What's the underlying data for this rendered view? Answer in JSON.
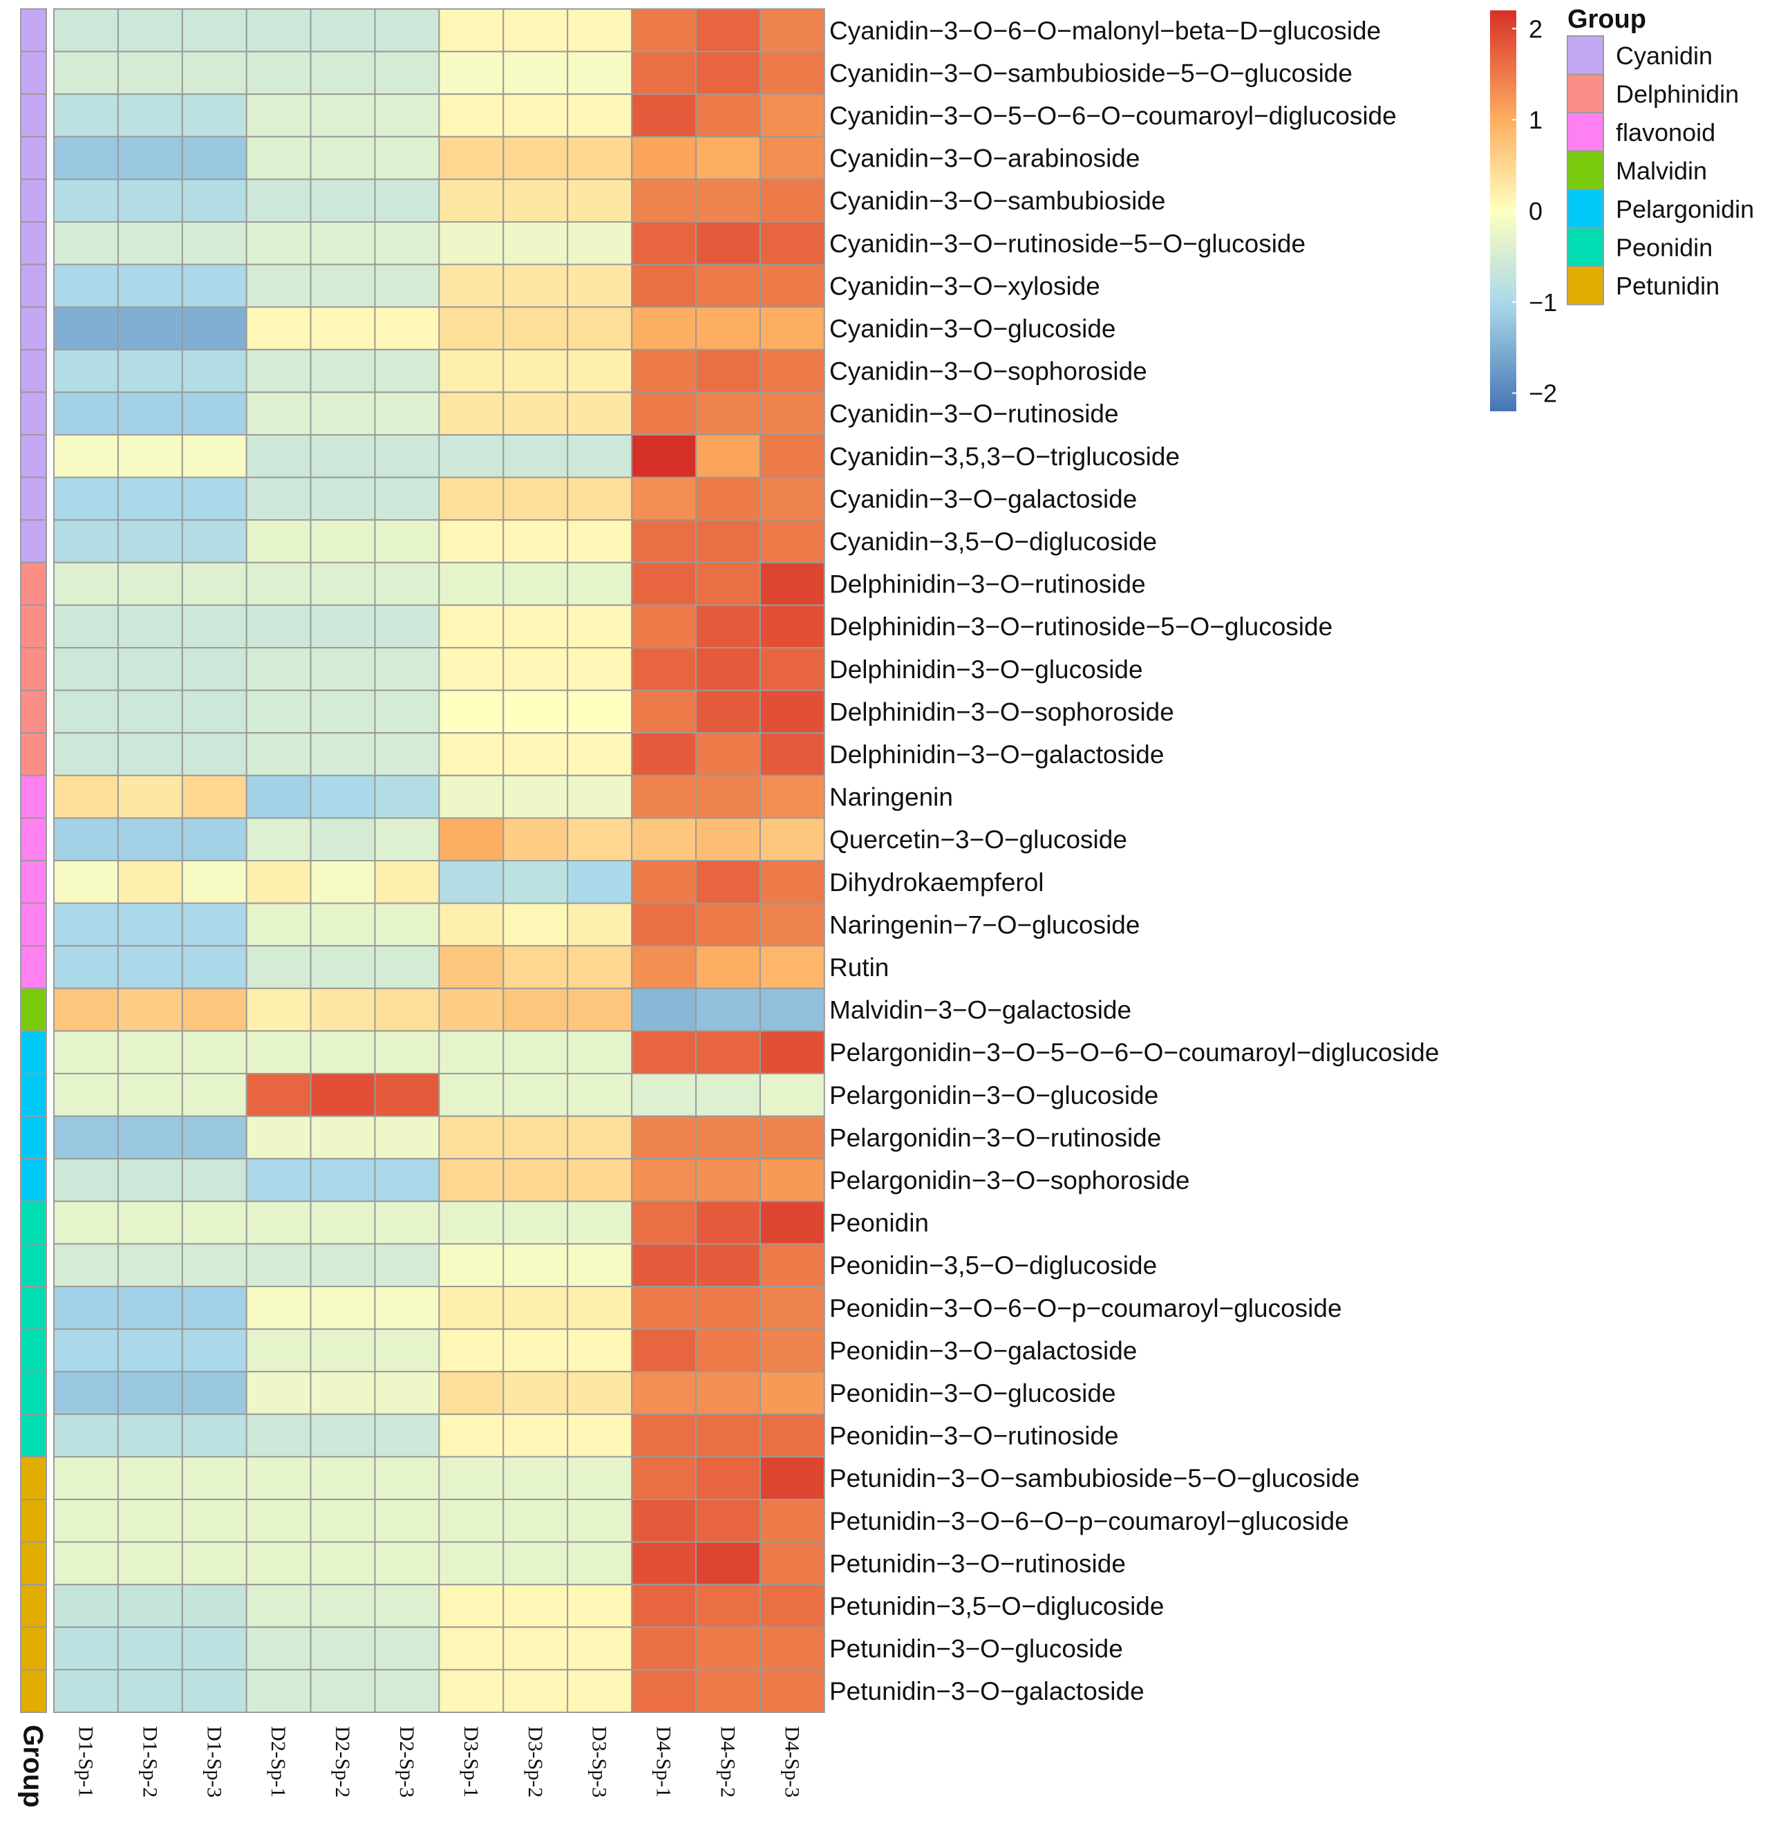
{
  "chart_data": {
    "type": "heatmap",
    "title": "",
    "color_scale": {
      "min": -2.2,
      "max": 2.2,
      "ticks": [
        2,
        1,
        0,
        -1,
        -2
      ],
      "stops": [
        {
          "value": -2.2,
          "color": "#4575b4"
        },
        {
          "value": -1,
          "color": "#abd9e9"
        },
        {
          "value": 0,
          "color": "#ffffbf"
        },
        {
          "value": 1,
          "color": "#fdae61"
        },
        {
          "value": 2.2,
          "color": "#d73027"
        }
      ]
    },
    "columns": [
      "D1-Sp-1",
      "D1-Sp-2",
      "D1-Sp-3",
      "D2-Sp-1",
      "D2-Sp-2",
      "D2-Sp-3",
      "D3-Sp-1",
      "D3-Sp-2",
      "D3-Sp-3",
      "D4-Sp-1",
      "D4-Sp-2",
      "D4-Sp-3"
    ],
    "annotation_label": "Group",
    "groups": [
      {
        "name": "Cyanidin",
        "color": "#C4A8F5"
      },
      {
        "name": "Delphinidin",
        "color": "#FB8E86"
      },
      {
        "name": "flavonoid",
        "color": "#FF80F0"
      },
      {
        "name": "Malvidin",
        "color": "#7ACB0E"
      },
      {
        "name": "Pelargonidin",
        "color": "#00C8F8"
      },
      {
        "name": "Peonidin",
        "color": "#00DDB2"
      },
      {
        "name": "Petunidin",
        "color": "#E1AD00"
      }
    ],
    "rows": [
      {
        "name": "Cyanidin−3−O−6−O−malonyl−beta−D−glucoside",
        "group": "Cyanidin",
        "values": [
          -0.6,
          -0.6,
          -0.6,
          -0.6,
          -0.6,
          -0.6,
          0.1,
          0.1,
          0.1,
          1.5,
          1.7,
          1.4
        ]
      },
      {
        "name": "Cyanidin−3−O−sambubioside−5−O−glucoside",
        "group": "Cyanidin",
        "values": [
          -0.5,
          -0.5,
          -0.5,
          -0.5,
          -0.5,
          -0.5,
          -0.1,
          -0.1,
          -0.1,
          1.6,
          1.7,
          1.5
        ]
      },
      {
        "name": "Cyanidin−3−O−5−O−6−O−coumaroyl−diglucoside",
        "group": "Cyanidin",
        "values": [
          -0.8,
          -0.8,
          -0.8,
          -0.4,
          -0.4,
          -0.4,
          0.1,
          0.1,
          0.1,
          1.8,
          1.5,
          1.3
        ]
      },
      {
        "name": "Cyanidin−3−O−arabinoside",
        "group": "Cyanidin",
        "values": [
          -1.2,
          -1.2,
          -1.2,
          -0.4,
          -0.4,
          -0.4,
          0.5,
          0.5,
          0.5,
          1.1,
          1.0,
          1.3
        ]
      },
      {
        "name": "Cyanidin−3−O−sambubioside",
        "group": "Cyanidin",
        "values": [
          -0.9,
          -0.9,
          -0.9,
          -0.6,
          -0.6,
          -0.6,
          0.3,
          0.3,
          0.3,
          1.4,
          1.4,
          1.5
        ]
      },
      {
        "name": "Cyanidin−3−O−rutinoside−5−O−glucoside",
        "group": "Cyanidin",
        "values": [
          -0.5,
          -0.5,
          -0.5,
          -0.4,
          -0.4,
          -0.4,
          -0.2,
          -0.2,
          -0.2,
          1.7,
          1.8,
          1.7
        ]
      },
      {
        "name": "Cyanidin−3−O−xyloside",
        "group": "Cyanidin",
        "values": [
          -1.0,
          -1.0,
          -1.0,
          -0.5,
          -0.5,
          -0.5,
          0.3,
          0.3,
          0.3,
          1.6,
          1.5,
          1.5
        ]
      },
      {
        "name": "Cyanidin−3−O−glucoside",
        "group": "Cyanidin",
        "values": [
          -1.5,
          -1.5,
          -1.5,
          0.1,
          0.1,
          0.1,
          0.4,
          0.4,
          0.4,
          1.0,
          1.0,
          1.0
        ]
      },
      {
        "name": "Cyanidin−3−O−sophoroside",
        "group": "Cyanidin",
        "values": [
          -0.9,
          -0.9,
          -0.9,
          -0.5,
          -0.5,
          -0.5,
          0.2,
          0.2,
          0.2,
          1.5,
          1.6,
          1.5
        ]
      },
      {
        "name": "Cyanidin−3−O−rutinoside",
        "group": "Cyanidin",
        "values": [
          -1.1,
          -1.1,
          -1.1,
          -0.4,
          -0.4,
          -0.4,
          0.3,
          0.3,
          0.3,
          1.5,
          1.4,
          1.4
        ]
      },
      {
        "name": "Cyanidin−3,5,3−O−triglucoside",
        "group": "Cyanidin",
        "values": [
          -0.1,
          -0.1,
          -0.1,
          -0.6,
          -0.6,
          -0.6,
          -0.6,
          -0.6,
          -0.6,
          2.2,
          1.1,
          1.5
        ]
      },
      {
        "name": "Cyanidin−3−O−galactoside",
        "group": "Cyanidin",
        "values": [
          -1.0,
          -1.0,
          -1.0,
          -0.6,
          -0.6,
          -0.6,
          0.4,
          0.4,
          0.4,
          1.3,
          1.5,
          1.4
        ]
      },
      {
        "name": "Cyanidin−3,5−O−diglucoside",
        "group": "Cyanidin",
        "values": [
          -0.9,
          -0.9,
          -0.9,
          -0.3,
          -0.3,
          -0.3,
          0.1,
          0.1,
          0.1,
          1.6,
          1.6,
          1.5
        ]
      },
      {
        "name": "Delphinidin−3−O−rutinoside",
        "group": "Delphinidin",
        "values": [
          -0.4,
          -0.4,
          -0.4,
          -0.4,
          -0.4,
          -0.4,
          -0.3,
          -0.3,
          -0.3,
          1.7,
          1.6,
          2.0
        ]
      },
      {
        "name": "Delphinidin−3−O−rutinoside−5−O−glucoside",
        "group": "Delphinidin",
        "values": [
          -0.6,
          -0.6,
          -0.6,
          -0.6,
          -0.6,
          -0.6,
          0.1,
          0.1,
          0.1,
          1.5,
          1.8,
          1.9
        ]
      },
      {
        "name": "Delphinidin−3−O−glucoside",
        "group": "Delphinidin",
        "values": [
          -0.6,
          -0.6,
          -0.6,
          -0.5,
          -0.5,
          -0.5,
          0.1,
          0.1,
          0.1,
          1.7,
          1.8,
          1.7
        ]
      },
      {
        "name": "Delphinidin−3−O−sophoroside",
        "group": "Delphinidin",
        "values": [
          -0.6,
          -0.6,
          -0.6,
          -0.5,
          -0.5,
          -0.5,
          0.0,
          0.0,
          0.0,
          1.5,
          1.8,
          1.9
        ]
      },
      {
        "name": "Delphinidin−3−O−galactoside",
        "group": "Delphinidin",
        "values": [
          -0.6,
          -0.6,
          -0.6,
          -0.5,
          -0.5,
          -0.5,
          0.1,
          0.1,
          0.1,
          1.8,
          1.5,
          1.8
        ]
      },
      {
        "name": "Naringenin",
        "group": "flavonoid",
        "values": [
          0.4,
          0.3,
          0.5,
          -1.1,
          -1.0,
          -0.9,
          -0.2,
          -0.2,
          -0.2,
          1.4,
          1.4,
          1.3
        ]
      },
      {
        "name": "Quercetin−3−O−glucoside",
        "group": "flavonoid",
        "values": [
          -1.1,
          -1.1,
          -1.1,
          -0.4,
          -0.5,
          -0.4,
          1.0,
          0.6,
          0.5,
          0.7,
          0.8,
          0.7
        ]
      },
      {
        "name": "Dihydrokaempferol",
        "group": "flavonoid",
        "values": [
          -0.1,
          0.2,
          -0.1,
          0.2,
          -0.1,
          0.2,
          -0.9,
          -0.8,
          -1.0,
          1.5,
          1.7,
          1.5
        ]
      },
      {
        "name": "Naringenin−7−O−glucoside",
        "group": "flavonoid",
        "values": [
          -1.0,
          -1.0,
          -1.0,
          -0.3,
          -0.3,
          -0.3,
          0.2,
          0.1,
          0.2,
          1.6,
          1.5,
          1.4
        ]
      },
      {
        "name": "Rutin",
        "group": "flavonoid",
        "values": [
          -1.0,
          -1.0,
          -1.0,
          -0.5,
          -0.5,
          -0.5,
          0.7,
          0.5,
          0.5,
          1.3,
          1.0,
          0.9
        ]
      },
      {
        "name": "Malvidin−3−O−galactoside",
        "group": "Malvidin",
        "values": [
          0.7,
          0.6,
          0.7,
          0.2,
          0.3,
          0.4,
          0.6,
          0.7,
          0.7,
          -1.4,
          -1.3,
          -1.3
        ]
      },
      {
        "name": "Pelargonidin−3−O−5−O−6−O−coumaroyl−diglucoside",
        "group": "Pelargonidin",
        "values": [
          -0.3,
          -0.3,
          -0.3,
          -0.3,
          -0.3,
          -0.3,
          -0.3,
          -0.3,
          -0.3,
          1.7,
          1.7,
          1.9
        ]
      },
      {
        "name": "Pelargonidin−3−O−glucoside",
        "group": "Pelargonidin",
        "values": [
          -0.3,
          -0.3,
          -0.3,
          1.7,
          1.9,
          1.8,
          -0.3,
          -0.3,
          -0.3,
          -0.4,
          -0.4,
          -0.3
        ]
      },
      {
        "name": "Pelargonidin−3−O−rutinoside",
        "group": "Pelargonidin",
        "values": [
          -1.2,
          -1.2,
          -1.2,
          -0.2,
          -0.2,
          -0.2,
          0.4,
          0.4,
          0.4,
          1.4,
          1.4,
          1.4
        ]
      },
      {
        "name": "Pelargonidin−3−O−sophoroside",
        "group": "Pelargonidin",
        "values": [
          -0.6,
          -0.6,
          -0.6,
          -1.0,
          -1.0,
          -1.0,
          0.5,
          0.5,
          0.5,
          1.3,
          1.3,
          1.2
        ]
      },
      {
        "name": "Peonidin",
        "group": "Peonidin",
        "values": [
          -0.3,
          -0.3,
          -0.3,
          -0.3,
          -0.3,
          -0.3,
          -0.3,
          -0.3,
          -0.3,
          1.6,
          1.8,
          2.0
        ]
      },
      {
        "name": "Peonidin−3,5−O−diglucoside",
        "group": "Peonidin",
        "values": [
          -0.5,
          -0.5,
          -0.5,
          -0.5,
          -0.5,
          -0.5,
          -0.1,
          -0.1,
          -0.1,
          1.8,
          1.8,
          1.5
        ]
      },
      {
        "name": "Peonidin−3−O−6−O−p−coumaroyl−glucoside",
        "group": "Peonidin",
        "values": [
          -1.1,
          -1.1,
          -1.1,
          -0.1,
          -0.1,
          -0.1,
          0.2,
          0.2,
          0.2,
          1.5,
          1.5,
          1.4
        ]
      },
      {
        "name": "Peonidin−3−O−galactoside",
        "group": "Peonidin",
        "values": [
          -1.0,
          -1.0,
          -1.0,
          -0.3,
          -0.3,
          -0.3,
          0.1,
          0.1,
          0.1,
          1.7,
          1.5,
          1.4
        ]
      },
      {
        "name": "Peonidin−3−O−glucoside",
        "group": "Peonidin",
        "values": [
          -1.2,
          -1.2,
          -1.2,
          -0.2,
          -0.2,
          -0.2,
          0.4,
          0.3,
          0.3,
          1.3,
          1.3,
          1.2
        ]
      },
      {
        "name": "Peonidin−3−O−rutinoside",
        "group": "Peonidin",
        "values": [
          -0.8,
          -0.8,
          -0.8,
          -0.6,
          -0.6,
          -0.6,
          0.1,
          0.1,
          0.1,
          1.6,
          1.6,
          1.6
        ]
      },
      {
        "name": "Petunidin−3−O−sambubioside−5−O−glucoside",
        "group": "Petunidin",
        "values": [
          -0.3,
          -0.3,
          -0.3,
          -0.3,
          -0.3,
          -0.3,
          -0.3,
          -0.3,
          -0.3,
          1.6,
          1.7,
          2.0
        ]
      },
      {
        "name": "Petunidin−3−O−6−O−p−coumaroyl−glucoside",
        "group": "Petunidin",
        "values": [
          -0.3,
          -0.3,
          -0.3,
          -0.3,
          -0.3,
          -0.3,
          -0.3,
          -0.3,
          -0.3,
          1.8,
          1.7,
          1.5
        ]
      },
      {
        "name": "Petunidin−3−O−rutinoside",
        "group": "Petunidin",
        "values": [
          -0.3,
          -0.3,
          -0.3,
          -0.3,
          -0.3,
          -0.3,
          -0.3,
          -0.3,
          -0.3,
          1.9,
          2.0,
          1.5
        ]
      },
      {
        "name": "Petunidin−3,5−O−diglucoside",
        "group": "Petunidin",
        "values": [
          -0.7,
          -0.7,
          -0.7,
          -0.4,
          -0.4,
          -0.4,
          0.1,
          0.1,
          0.1,
          1.7,
          1.6,
          1.6
        ]
      },
      {
        "name": "Petunidin−3−O−glucoside",
        "group": "Petunidin",
        "values": [
          -0.8,
          -0.8,
          -0.8,
          -0.5,
          -0.5,
          -0.5,
          0.1,
          0.1,
          0.1,
          1.6,
          1.5,
          1.5
        ]
      },
      {
        "name": "Petunidin−3−O−galactoside",
        "group": "Petunidin",
        "values": [
          -0.8,
          -0.8,
          -0.8,
          -0.5,
          -0.5,
          -0.5,
          0.1,
          0.1,
          0.1,
          1.6,
          1.5,
          1.5
        ]
      }
    ]
  }
}
